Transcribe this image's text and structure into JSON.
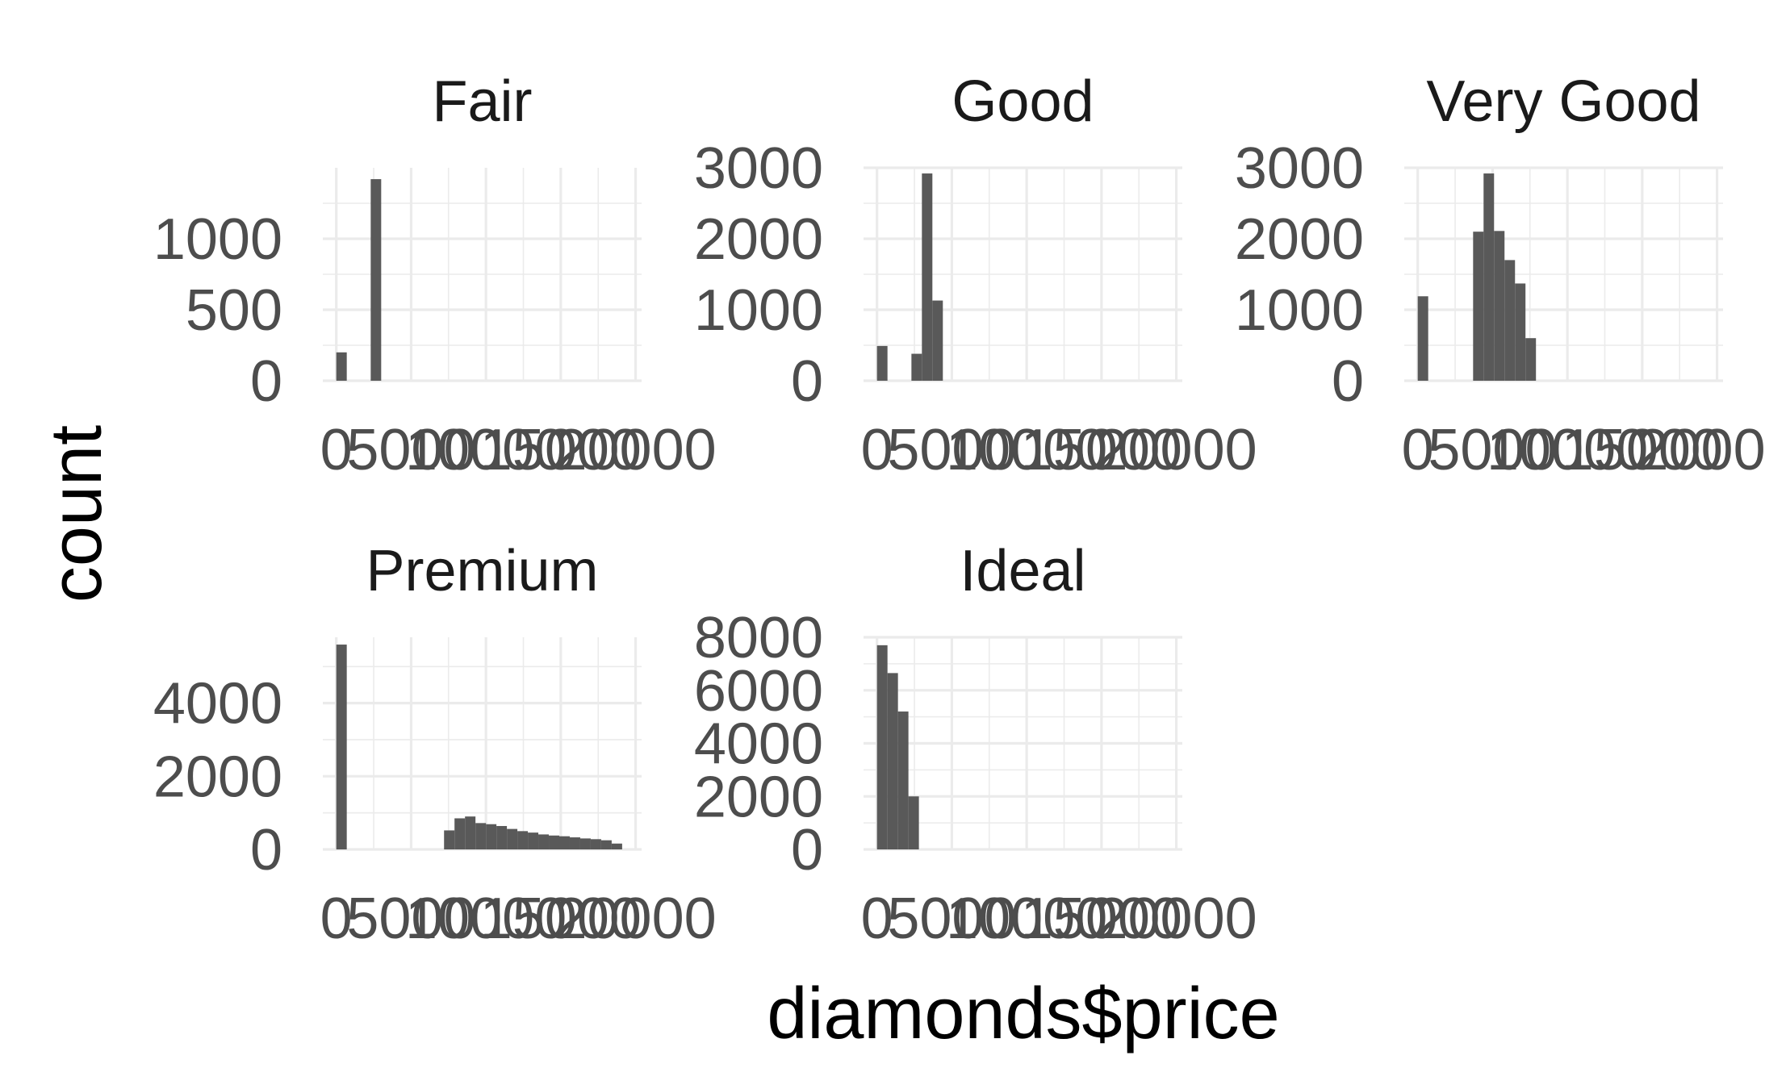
{
  "chart_data": {
    "type": "bar",
    "xlabel": "diamonds$price",
    "ylabel": "count",
    "xlim": [
      -900,
      20400
    ],
    "x_ticks": [
      0,
      5000,
      10000,
      15000,
      20000
    ],
    "x_tick_labels": [
      "0",
      "5000",
      "10000",
      "15000",
      "20000"
    ],
    "bar_color": "#595959",
    "grid_color": "#ebebeb",
    "legend": "none",
    "facets": [
      {
        "name": "Fair",
        "ylim": [
          0,
          1500
        ],
        "y_ticks": [
          0,
          500,
          1000
        ],
        "y_tick_labels": [
          "0",
          "500",
          "1000"
        ],
        "bins": [
          {
            "x0": 0,
            "x1": 700,
            "count": 200
          },
          {
            "x0": 2300,
            "x1": 3000,
            "count": 1420
          }
        ]
      },
      {
        "name": "Good",
        "ylim": [
          0,
          3000
        ],
        "y_ticks": [
          0,
          1000,
          2000,
          3000
        ],
        "y_tick_labels": [
          "0",
          "1000",
          "2000",
          "3000"
        ],
        "bins": [
          {
            "x0": 0,
            "x1": 700,
            "count": 490
          },
          {
            "x0": 2300,
            "x1": 3000,
            "count": 380
          },
          {
            "x0": 3000,
            "x1": 3700,
            "count": 2920
          },
          {
            "x0": 3700,
            "x1": 4400,
            "count": 1130
          }
        ]
      },
      {
        "name": "Very Good",
        "ylim": [
          0,
          3000
        ],
        "y_ticks": [
          0,
          1000,
          2000,
          3000
        ],
        "y_tick_labels": [
          "0",
          "1000",
          "2000",
          "3000"
        ],
        "bins": [
          {
            "x0": 0,
            "x1": 700,
            "count": 1190
          },
          {
            "x0": 3700,
            "x1": 4400,
            "count": 2100
          },
          {
            "x0": 4400,
            "x1": 5100,
            "count": 2920
          },
          {
            "x0": 5100,
            "x1": 5800,
            "count": 2110
          },
          {
            "x0": 5800,
            "x1": 6500,
            "count": 1700
          },
          {
            "x0": 6500,
            "x1": 7200,
            "count": 1370
          },
          {
            "x0": 7200,
            "x1": 7900,
            "count": 600
          }
        ]
      },
      {
        "name": "Premium",
        "ylim": [
          0,
          5800
        ],
        "y_ticks": [
          0,
          2000,
          4000
        ],
        "y_tick_labels": [
          "0",
          "2000",
          "4000"
        ],
        "bins": [
          {
            "x0": 0,
            "x1": 700,
            "count": 5600
          },
          {
            "x0": 7200,
            "x1": 7900,
            "count": 520
          },
          {
            "x0": 7900,
            "x1": 8600,
            "count": 850
          },
          {
            "x0": 8600,
            "x1": 9300,
            "count": 900
          },
          {
            "x0": 9300,
            "x1": 10000,
            "count": 720
          },
          {
            "x0": 10000,
            "x1": 10700,
            "count": 690
          },
          {
            "x0": 10700,
            "x1": 11400,
            "count": 640
          },
          {
            "x0": 11400,
            "x1": 12100,
            "count": 560
          },
          {
            "x0": 12100,
            "x1": 12800,
            "count": 500
          },
          {
            "x0": 12800,
            "x1": 13500,
            "count": 460
          },
          {
            "x0": 13500,
            "x1": 14200,
            "count": 410
          },
          {
            "x0": 14200,
            "x1": 14900,
            "count": 380
          },
          {
            "x0": 14900,
            "x1": 15600,
            "count": 360
          },
          {
            "x0": 15600,
            "x1": 16300,
            "count": 330
          },
          {
            "x0": 16300,
            "x1": 17000,
            "count": 300
          },
          {
            "x0": 17000,
            "x1": 17700,
            "count": 280
          },
          {
            "x0": 17700,
            "x1": 18400,
            "count": 250
          },
          {
            "x0": 18400,
            "x1": 19100,
            "count": 160
          }
        ]
      },
      {
        "name": "Ideal",
        "ylim": [
          0,
          8000
        ],
        "y_ticks": [
          0,
          2000,
          4000,
          6000,
          8000
        ],
        "y_tick_labels": [
          "0",
          "2000",
          "4000",
          "6000",
          "8000"
        ],
        "bins": [
          {
            "x0": 0,
            "x1": 700,
            "count": 7700
          },
          {
            "x0": 700,
            "x1": 1400,
            "count": 6650
          },
          {
            "x0": 1400,
            "x1": 2100,
            "count": 5200
          },
          {
            "x0": 2100,
            "x1": 2800,
            "count": 2000
          }
        ]
      }
    ]
  }
}
